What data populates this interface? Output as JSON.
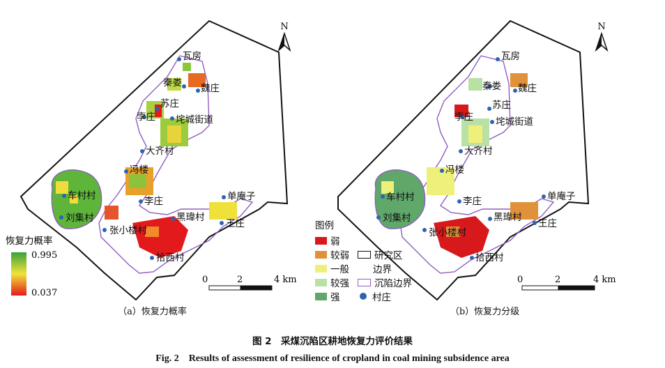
{
  "north_label": "N",
  "scale": {
    "ticks": [
      "0",
      "2",
      "4 km"
    ]
  },
  "villages": [
    "瓦房",
    "秦娄",
    "魏庄",
    "苏庄",
    "孛庄",
    "垞城街道",
    "大齐村",
    "冯楼",
    "车村村",
    "李庄",
    "单庵子",
    "刘集村",
    "黑瑋村",
    "王庄",
    "张小楼村",
    "拾西村"
  ],
  "panel_a": {
    "caption": "（a）恢复力概率",
    "legend_title": "恢复力概率",
    "legend_max": "0.995",
    "legend_min": "0.037",
    "colors": {
      "high": "#4caf3a",
      "mid": "#f3e83a",
      "low": "#e52020"
    }
  },
  "panel_b": {
    "caption": "（b）恢复力分级",
    "legend_title": "图例",
    "classes": [
      {
        "label": "弱",
        "color": "#d7191c"
      },
      {
        "label": "较弱",
        "color": "#e0913a"
      },
      {
        "label": "一般",
        "color": "#eef07a"
      },
      {
        "label": "较强",
        "color": "#b9e0a5"
      },
      {
        "label": "强",
        "color": "#5fa86a"
      }
    ],
    "study_area_label": "研究区",
    "study_area_label2": "边界",
    "subsidence_label": "沉陷边界",
    "village_label": "村庄"
  },
  "figure_title_cn": "图 2　采煤沉陷区耕地恢复力评价结果",
  "figure_title_en": "Fig. 2　Results of assessment of resilience of cropland in coal mining subsidence area"
}
